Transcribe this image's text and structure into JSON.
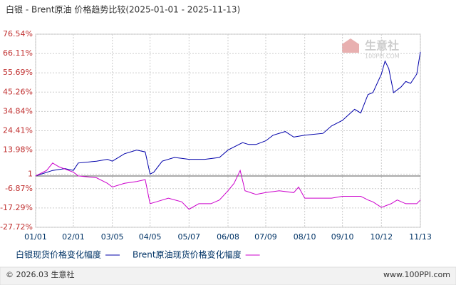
{
  "chart_data": {
    "type": "line",
    "title": "白银 - Brent原油 价格趋势比较(2025-01-01 - 2025-11-13)",
    "xlim": [
      "01/01",
      "11/13"
    ],
    "xticks": [
      "01/01",
      "02/01",
      "03/05",
      "04/05",
      "05/07",
      "06/08",
      "07/09",
      "08/10",
      "09/10",
      "10/12",
      "11/13"
    ],
    "ylim": [
      -27.72,
      76.54
    ],
    "yticks": [
      {
        "value": 76.54,
        "label": "76.54%"
      },
      {
        "value": 66.11,
        "label": "66.11%"
      },
      {
        "value": 55.69,
        "label": "55.69%"
      },
      {
        "value": 45.26,
        "label": "45.26%"
      },
      {
        "value": 34.84,
        "label": "34.84%"
      },
      {
        "value": 24.41,
        "label": "24.41%"
      },
      {
        "value": 13.98,
        "label": "13.98%"
      },
      1,
      {
        "value": -6.87,
        "label": "-6.87%"
      },
      {
        "value": -17.29,
        "label": "-17.29%"
      },
      {
        "value": -27.72,
        "label": "-27.72%"
      }
    ],
    "grid": true,
    "baseline": 0,
    "series": [
      {
        "name": "白银现货价格变化幅度",
        "color": "#0000aa",
        "x": [
          "01/01",
          "01/15",
          "01/25",
          "02/01",
          "02/05",
          "02/20",
          "03/01",
          "03/05",
          "03/15",
          "03/25",
          "04/01",
          "04/05",
          "04/08",
          "04/15",
          "04/25",
          "05/07",
          "05/20",
          "06/01",
          "06/08",
          "06/20",
          "06/25",
          "07/01",
          "07/09",
          "07/15",
          "07/25",
          "08/01",
          "08/10",
          "08/25",
          "09/01",
          "09/10",
          "09/20",
          "09/25",
          "10/01",
          "10/05",
          "10/12",
          "10/15",
          "10/18",
          "10/22",
          "10/28",
          "11/01",
          "11/05",
          "11/10",
          "11/13"
        ],
        "values": [
          0,
          3,
          4,
          3,
          7,
          8,
          9,
          8,
          12,
          14,
          13,
          1,
          2,
          8,
          10,
          9,
          9,
          10,
          14,
          18,
          17,
          17,
          19,
          22,
          24,
          21,
          22,
          23,
          27,
          30,
          36,
          34,
          44,
          45,
          55,
          62,
          58,
          45,
          48,
          51,
          50,
          55,
          67
        ]
      },
      {
        "name": "Brent原油现货价格变化幅度",
        "color": "#cc00cc",
        "x": [
          "01/01",
          "01/10",
          "01/15",
          "01/20",
          "02/01",
          "02/05",
          "02/20",
          "03/01",
          "03/05",
          "03/15",
          "03/25",
          "04/01",
          "04/05",
          "04/10",
          "04/20",
          "05/01",
          "05/07",
          "05/15",
          "05/25",
          "06/01",
          "06/08",
          "06/13",
          "06/18",
          "06/22",
          "07/01",
          "07/09",
          "07/20",
          "08/01",
          "08/05",
          "08/10",
          "08/25",
          "09/01",
          "09/10",
          "09/25",
          "10/01",
          "10/05",
          "10/12",
          "10/20",
          "10/25",
          "11/01",
          "11/10",
          "11/13"
        ],
        "values": [
          0,
          3,
          7,
          5,
          2,
          0,
          -1,
          -4,
          -6,
          -4,
          -3,
          -2,
          -15,
          -14,
          -12,
          -14,
          -18,
          -15,
          -15,
          -13,
          -8,
          -4,
          3,
          -8,
          -10,
          -9,
          -8,
          -9,
          -6,
          -12,
          -12,
          -12,
          -11,
          -11,
          -13,
          -14,
          -17,
          -15,
          -13,
          -15,
          -15,
          -13
        ]
      }
    ],
    "watermark": [
      "生意社",
      "100PPI.COM"
    ],
    "footer": {
      "left": "© 2026.03 生意社",
      "right": "www.100PPI.com"
    }
  }
}
